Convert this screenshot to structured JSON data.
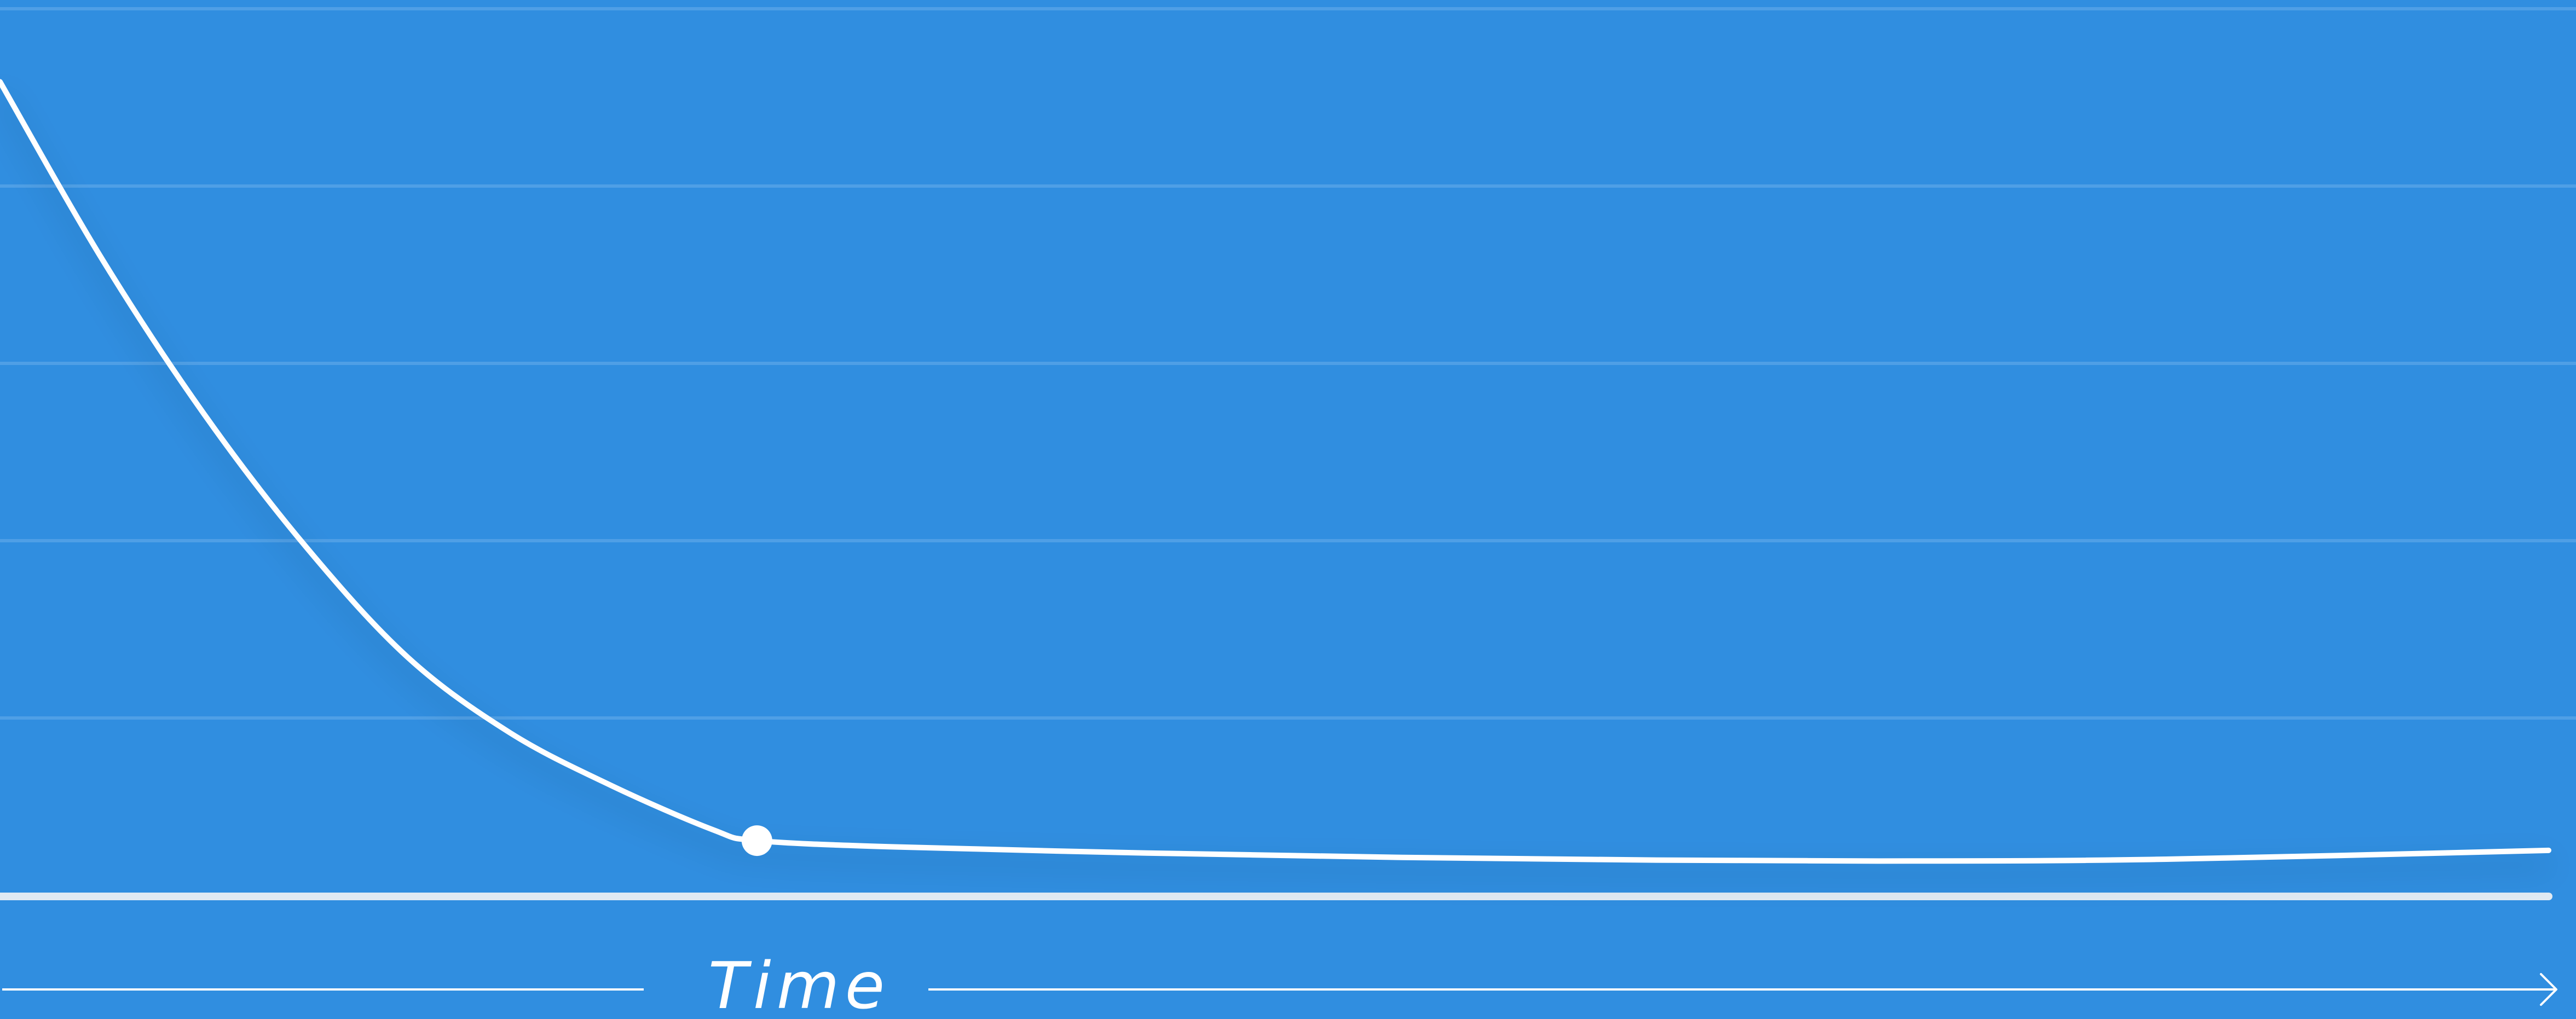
{
  "chart_data": {
    "type": "line",
    "title": "",
    "xlabel": "Time",
    "ylabel": "",
    "xlim": [
      0,
      100
    ],
    "ylim": [
      0,
      100
    ],
    "grid": true,
    "legend": "none",
    "series": [
      {
        "values": [
          [
            0,
            92.0
          ],
          [
            4,
            72.0
          ],
          [
            8,
            54.5
          ],
          [
            12,
            39.5
          ],
          [
            16,
            27.0
          ],
          [
            20,
            18.5
          ],
          [
            24,
            12.5
          ],
          [
            28,
            7.5
          ],
          [
            29.7,
            6.3
          ],
          [
            35,
            5.6
          ],
          [
            45,
            4.9
          ],
          [
            55,
            4.4
          ],
          [
            65,
            4.1
          ],
          [
            75,
            4.0
          ],
          [
            85,
            4.2
          ],
          [
            100,
            5.2
          ]
        ]
      }
    ],
    "highlight_point": [
      29.7,
      6.3
    ]
  },
  "colors": {
    "background": "#308ee0",
    "line": "#ffffff",
    "gridline": "#4f9fe6",
    "baseline": "#e0eaf3",
    "axis_arrow": "#ffffff"
  }
}
